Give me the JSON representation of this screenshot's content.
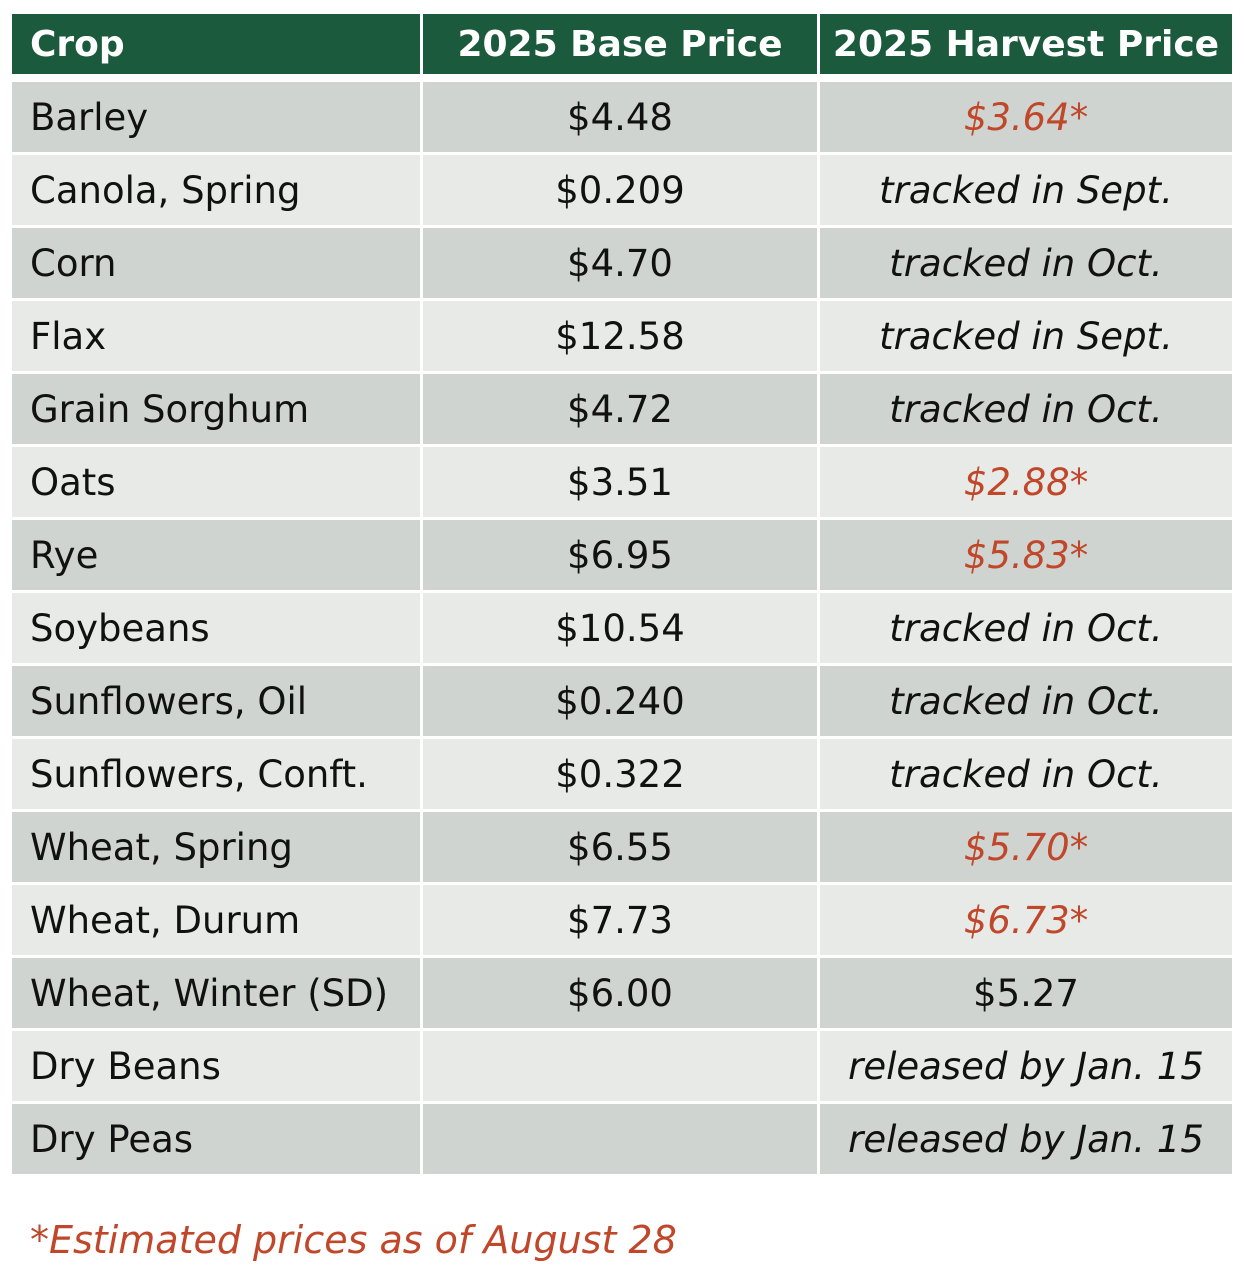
{
  "table": {
    "headers": {
      "crop": "Crop",
      "base": "2025 Base Price",
      "harvest": "2025 Harvest Price"
    },
    "rows": [
      {
        "crop": "Barley",
        "base": "$4.48",
        "harvest": "$3.64*",
        "harvest_style": "estimate"
      },
      {
        "crop": "Canola, Spring",
        "base": "$0.209",
        "harvest": "tracked in Sept.",
        "harvest_style": "italic"
      },
      {
        "crop": "Corn",
        "base": "$4.70",
        "harvest": "tracked in Oct.",
        "harvest_style": "italic"
      },
      {
        "crop": "Flax",
        "base": "$12.58",
        "harvest": "tracked in Sept.",
        "harvest_style": "italic"
      },
      {
        "crop": "Grain Sorghum",
        "base": "$4.72",
        "harvest": "tracked in Oct.",
        "harvest_style": "italic"
      },
      {
        "crop": "Oats",
        "base": "$3.51",
        "harvest": "$2.88*",
        "harvest_style": "estimate"
      },
      {
        "crop": "Rye",
        "base": "$6.95",
        "harvest": "$5.83*",
        "harvest_style": "estimate"
      },
      {
        "crop": "Soybeans",
        "base": "$10.54",
        "harvest": "tracked in Oct.",
        "harvest_style": "italic"
      },
      {
        "crop": "Sunflowers, Oil",
        "base": "$0.240",
        "harvest": "tracked in Oct.",
        "harvest_style": "italic"
      },
      {
        "crop": "Sunflowers, Conft.",
        "base": "$0.322",
        "harvest": "tracked in Oct.",
        "harvest_style": "italic"
      },
      {
        "crop": "Wheat, Spring",
        "base": "$6.55",
        "harvest": "$5.70*",
        "harvest_style": "estimate"
      },
      {
        "crop": "Wheat, Durum",
        "base": "$7.73",
        "harvest": "$6.73*",
        "harvest_style": "estimate"
      },
      {
        "crop": "Wheat, Winter (SD)",
        "base": "$6.00",
        "harvest": "$5.27",
        "harvest_style": "plain"
      },
      {
        "crop": "Dry Beans",
        "base": "",
        "harvest": "released by Jan. 15",
        "harvest_style": "italic"
      },
      {
        "crop": "Dry Peas",
        "base": "",
        "harvest": "released by Jan. 15",
        "harvest_style": "italic"
      }
    ]
  },
  "footnote": "*Estimated prices as of August 28",
  "colors": {
    "header_bg": "#1b5a3c",
    "row_dark": "#cfd4d1",
    "row_light": "#e8eae8",
    "estimate_text": "#c0472a"
  }
}
